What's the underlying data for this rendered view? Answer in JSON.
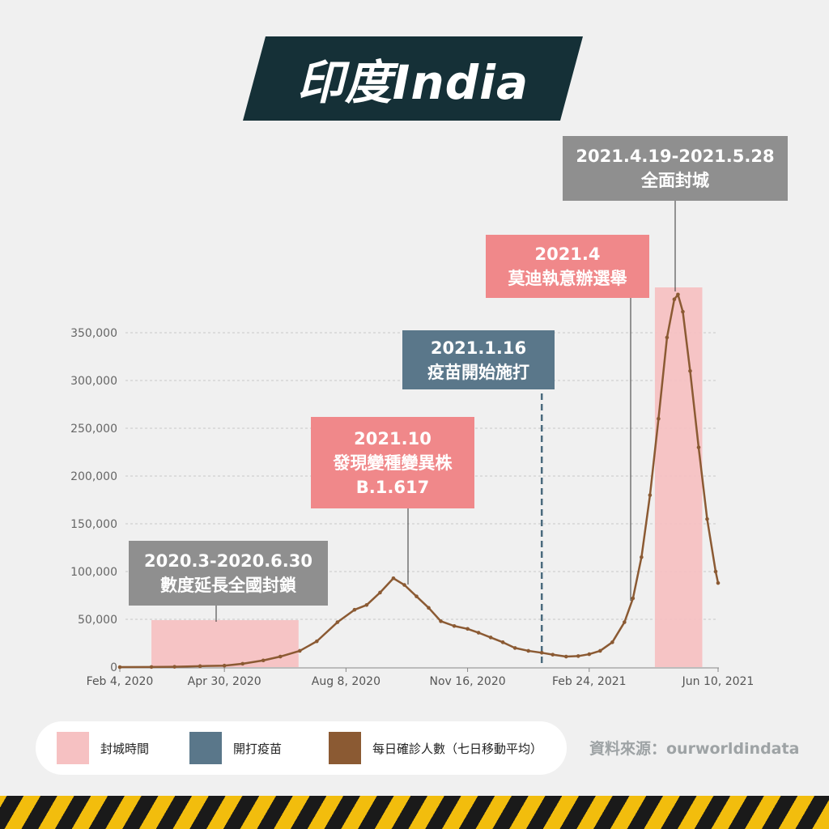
{
  "title": "印度India",
  "source": "資料來源：ourworldindata",
  "annotations": {
    "lockdown_2020": [
      "2020.3-2020.6.30",
      "數度延長全國封鎖"
    ],
    "variant": [
      "2021.10",
      "發現變種變異株",
      "B.1.617"
    ],
    "vaccine": [
      "2021.1.16",
      "疫苗開始施打"
    ],
    "election": [
      "2021.4",
      "莫迪執意辦選舉"
    ],
    "lockdown_2021": [
      "2021.4.19-2021.5.28",
      "全面封城"
    ]
  },
  "legend": [
    {
      "label": "封城時間",
      "color": "#f6c1c2"
    },
    {
      "label": "開打疫苗",
      "color": "#5a778a"
    },
    {
      "label": "每日確診人數（七日移動平均）",
      "color": "#8b5a33"
    }
  ],
  "colors": {
    "lockdown_shade": "#f6c1c2",
    "vaccine_line": "#4a6a7d",
    "cases_line": "#8b5a33",
    "gray_box": "#8f8f8f",
    "red_box": "#f0888a",
    "blue_box": "#5a778a",
    "title_bg": "#153037"
  },
  "chart_data": {
    "type": "line",
    "x_tick_labels": [
      "Feb 4, 2020",
      "Apr 30, 2020",
      "Aug 8, 2020",
      "Nov 16, 2020",
      "Feb 24, 2021",
      "Jun 10, 2021"
    ],
    "y_tick_labels": [
      "0",
      "50,000",
      "100,000",
      "150,000",
      "200,000",
      "250,000",
      "300,000",
      "350,000"
    ],
    "ylim": [
      0,
      350000
    ],
    "grid": "horizontal dashed",
    "legend_position": "bottom",
    "series": [
      {
        "name": "每日確診人數（七日移動平均）",
        "x": [
          "2020-02-04",
          "2020-03-01",
          "2020-03-20",
          "2020-04-10",
          "2020-04-30",
          "2020-05-15",
          "2020-06-01",
          "2020-06-15",
          "2020-07-01",
          "2020-07-15",
          "2020-08-01",
          "2020-08-15",
          "2020-08-25",
          "2020-09-05",
          "2020-09-16",
          "2020-09-25",
          "2020-10-05",
          "2020-10-15",
          "2020-10-25",
          "2020-11-05",
          "2020-11-16",
          "2020-11-25",
          "2020-12-05",
          "2020-12-15",
          "2020-12-25",
          "2021-01-05",
          "2021-01-16",
          "2021-01-25",
          "2021-02-05",
          "2021-02-15",
          "2021-02-24",
          "2021-03-05",
          "2021-03-15",
          "2021-03-25",
          "2021-04-01",
          "2021-04-08",
          "2021-04-15",
          "2021-04-22",
          "2021-04-29",
          "2021-05-05",
          "2021-05-08",
          "2021-05-12",
          "2021-05-18",
          "2021-05-25",
          "2021-06-01",
          "2021-06-08",
          "2021-06-10"
        ],
        "y": [
          0,
          100,
          300,
          1000,
          1500,
          3500,
          7000,
          11000,
          17000,
          27000,
          47000,
          60000,
          65000,
          78000,
          93000,
          86000,
          74000,
          62000,
          48000,
          43000,
          40000,
          36000,
          31000,
          26000,
          20000,
          17000,
          15000,
          13000,
          11000,
          11500,
          13500,
          17000,
          26000,
          47000,
          72000,
          115000,
          180000,
          260000,
          345000,
          385000,
          390000,
          372000,
          310000,
          230000,
          155000,
          100000,
          88000
        ]
      }
    ],
    "highlight_ranges": [
      {
        "from": "2020-03-01",
        "to": "2020-06-30",
        "label": "封城時間"
      },
      {
        "from": "2021-04-19",
        "to": "2021-05-28",
        "label": "封城時間"
      }
    ],
    "markers": [
      {
        "date": "2021-01-16",
        "label": "開打疫苗"
      }
    ]
  }
}
